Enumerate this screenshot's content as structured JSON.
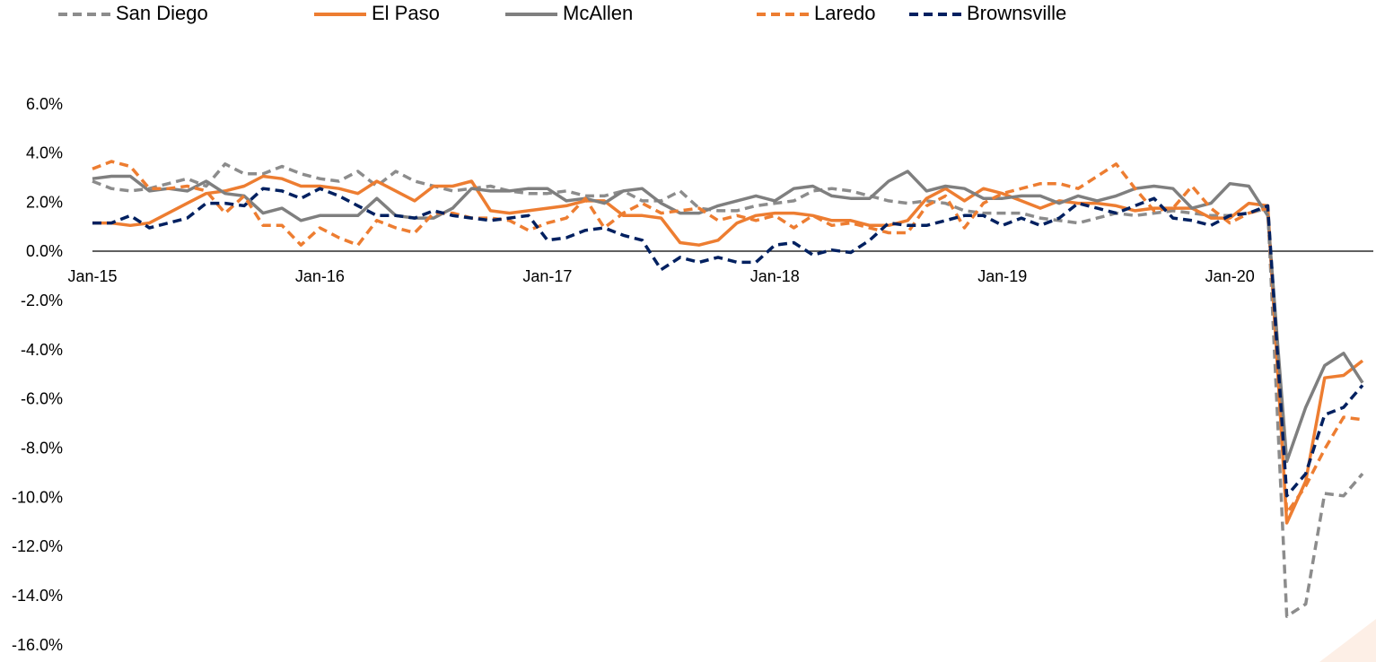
{
  "chart_data": {
    "type": "line",
    "categories": [
      "Jan-15",
      null,
      null,
      null,
      null,
      null,
      null,
      null,
      null,
      null,
      null,
      null,
      "Jan-16",
      null,
      null,
      null,
      null,
      null,
      null,
      null,
      null,
      null,
      null,
      null,
      "Jan-17",
      null,
      null,
      null,
      null,
      null,
      null,
      null,
      null,
      null,
      null,
      null,
      "Jan-18",
      null,
      null,
      null,
      null,
      null,
      null,
      null,
      null,
      null,
      null,
      null,
      "Jan-19",
      null,
      null,
      null,
      null,
      null,
      null,
      null,
      null,
      null,
      null,
      null,
      "Jan-20",
      null,
      null,
      null,
      null,
      null,
      null,
      null
    ],
    "ylim": [
      -16,
      6
    ],
    "yticks": [
      {
        "value": 6,
        "label": "6.0%"
      },
      {
        "value": 4,
        "label": "4.0%"
      },
      {
        "value": 2,
        "label": "2.0%"
      },
      {
        "value": 0,
        "label": "0.0%"
      },
      {
        "value": -2,
        "label": "-2.0%"
      },
      {
        "value": -4,
        "label": "-4.0%"
      },
      {
        "value": -6,
        "label": "-6.0%"
      },
      {
        "value": -8,
        "label": "-8.0%"
      },
      {
        "value": -10,
        "label": "-10.0%"
      },
      {
        "value": -12,
        "label": "-12.0%"
      },
      {
        "value": -14,
        "label": "-14.0%"
      },
      {
        "value": -16,
        "label": "-16.0%"
      }
    ],
    "grid": false,
    "legend": "top",
    "series": [
      {
        "name": "San Diego",
        "color": "#8c8c8c",
        "style": "dashed",
        "values": [
          2.9,
          2.6,
          2.5,
          2.6,
          2.8,
          3.0,
          2.7,
          3.6,
          3.2,
          3.2,
          3.5,
          3.2,
          3.0,
          2.9,
          3.3,
          2.7,
          3.3,
          2.9,
          2.7,
          2.5,
          2.6,
          2.7,
          2.5,
          2.4,
          2.4,
          2.5,
          2.3,
          2.3,
          2.5,
          2.1,
          2.1,
          2.5,
          1.8,
          1.7,
          1.7,
          1.9,
          2.0,
          2.1,
          2.5,
          2.6,
          2.5,
          2.3,
          2.1,
          2.0,
          2.1,
          2.0,
          1.7,
          1.6,
          1.6,
          1.6,
          1.4,
          1.3,
          1.2,
          1.4,
          1.6,
          1.5,
          1.6,
          1.7,
          1.6,
          1.5,
          1.5,
          1.6,
          1.8,
          -14.8,
          -14.3,
          -9.8,
          -9.9,
          -9.0
        ]
      },
      {
        "name": "El Paso",
        "color": "#ed7d31",
        "style": "solid",
        "values": [
          1.2,
          1.2,
          1.1,
          1.2,
          1.6,
          2.0,
          2.4,
          2.5,
          2.7,
          3.1,
          3.0,
          2.7,
          2.7,
          2.6,
          2.4,
          2.9,
          2.5,
          2.1,
          2.7,
          2.7,
          2.9,
          1.7,
          1.6,
          1.7,
          1.8,
          1.9,
          2.1,
          2.1,
          1.5,
          1.5,
          1.4,
          0.4,
          0.3,
          0.5,
          1.2,
          1.5,
          1.6,
          1.6,
          1.5,
          1.3,
          1.3,
          1.1,
          1.1,
          1.3,
          2.2,
          2.6,
          2.1,
          2.6,
          2.4,
          2.1,
          1.8,
          2.1,
          2.0,
          2.0,
          1.9,
          1.7,
          1.8,
          1.8,
          1.8,
          1.4,
          1.4,
          2.0,
          1.9,
          -11.0,
          -9.3,
          -5.1,
          -5.0,
          -4.4
        ]
      },
      {
        "name": "McAllen",
        "color": "#7f7f7f",
        "style": "solid",
        "values": [
          3.0,
          3.1,
          3.1,
          2.5,
          2.6,
          2.5,
          2.9,
          2.4,
          2.3,
          1.6,
          1.8,
          1.3,
          1.5,
          1.5,
          1.5,
          2.2,
          1.5,
          1.4,
          1.4,
          1.8,
          2.6,
          2.5,
          2.5,
          2.6,
          2.6,
          2.1,
          2.2,
          2.0,
          2.5,
          2.6,
          2.0,
          1.6,
          1.6,
          1.9,
          2.1,
          2.3,
          2.1,
          2.6,
          2.7,
          2.3,
          2.2,
          2.2,
          2.9,
          3.3,
          2.5,
          2.7,
          2.6,
          2.2,
          2.2,
          2.3,
          2.3,
          2.0,
          2.3,
          2.1,
          2.3,
          2.6,
          2.7,
          2.6,
          1.8,
          2.0,
          2.8,
          2.7,
          1.5,
          -8.5,
          -6.3,
          -4.6,
          -4.1,
          -5.3
        ]
      },
      {
        "name": "Laredo",
        "color": "#ed7d31",
        "style": "dashed",
        "values": [
          3.4,
          3.7,
          3.5,
          2.6,
          2.6,
          2.7,
          2.5,
          1.6,
          2.3,
          1.1,
          1.1,
          0.3,
          1.0,
          0.6,
          0.3,
          1.3,
          1.0,
          0.8,
          1.6,
          1.6,
          1.4,
          1.4,
          1.3,
          0.9,
          1.2,
          1.4,
          2.2,
          1.0,
          1.6,
          2.0,
          1.6,
          1.7,
          1.8,
          1.3,
          1.5,
          1.3,
          1.5,
          1.0,
          1.5,
          1.1,
          1.2,
          1.0,
          0.8,
          0.8,
          1.9,
          2.3,
          1.0,
          2.0,
          2.4,
          2.6,
          2.8,
          2.8,
          2.6,
          3.1,
          3.6,
          2.6,
          1.7,
          1.8,
          2.7,
          1.8,
          1.2,
          1.6,
          1.8,
          -10.6,
          -9.5,
          -8.0,
          -6.7,
          -6.8
        ]
      },
      {
        "name": "Brownsville",
        "color": "#002060",
        "style": "dashed",
        "values": [
          1.2,
          1.2,
          1.5,
          1.0,
          1.2,
          1.4,
          2.0,
          2.0,
          1.9,
          2.6,
          2.5,
          2.2,
          2.6,
          2.3,
          1.9,
          1.5,
          1.5,
          1.4,
          1.7,
          1.5,
          1.4,
          1.3,
          1.4,
          1.5,
          0.5,
          0.6,
          0.9,
          1.0,
          0.7,
          0.5,
          -0.7,
          -0.2,
          -0.4,
          -0.2,
          -0.4,
          -0.4,
          0.3,
          0.4,
          -0.1,
          0.1,
          0.0,
          0.5,
          1.2,
          1.1,
          1.1,
          1.3,
          1.5,
          1.5,
          1.1,
          1.4,
          1.1,
          1.4,
          2.0,
          1.8,
          1.6,
          1.9,
          2.2,
          1.4,
          1.3,
          1.1,
          1.5,
          1.6,
          1.9,
          -9.9,
          -9.0,
          -6.6,
          -6.3,
          -5.4
        ]
      }
    ]
  }
}
